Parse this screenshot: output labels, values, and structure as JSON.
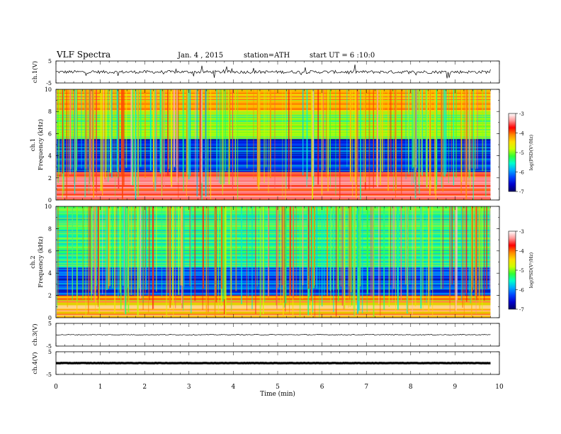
{
  "header": {
    "title": "VLF Spectra",
    "date": "Jan. 4 , 2015",
    "station": "station=ATH",
    "start": "start UT = 6 :10:0"
  },
  "colors": {
    "background": "#ffffff",
    "frame": "#000000",
    "colormap": [
      "#000066",
      "#0000cc",
      "#0044ff",
      "#00aaff",
      "#00ffcc",
      "#33ff33",
      "#ccff00",
      "#ffdd00",
      "#ff8800",
      "#ff0000",
      "#ff9999",
      "#ffffff"
    ]
  },
  "chart_data": [
    {
      "type": "line",
      "panel": "ch1-waveform",
      "ylabel": "ch.1(V)",
      "ylim": [
        -5,
        5
      ],
      "yticks": [
        "5",
        "-5"
      ],
      "xlim": [
        0,
        10
      ],
      "baseline": 0,
      "description_of_trace": "noisy waveform near 0 V with sporadic spikes"
    },
    {
      "type": "heatmap",
      "panel": "ch1-spectrogram",
      "ylabel_outer": "ch.1",
      "ylabel": "Frequency (kHz)",
      "ylim": [
        0,
        10
      ],
      "yticks": [
        "0",
        "2",
        "4",
        "6",
        "8",
        "10"
      ],
      "xlim": [
        0,
        10
      ],
      "data_end_min": 9.8,
      "colorbar": {
        "label": "log(PSD(V²/Hz)",
        "range": [
          -7,
          -3
        ],
        "ticks": [
          "-3",
          "-4",
          "-5",
          "-6",
          "-7"
        ]
      },
      "bands": [
        {
          "f_low": 0,
          "f_high": 2.5,
          "level": -3.6
        },
        {
          "f_low": 2.5,
          "f_high": 5.5,
          "level": -6.4
        },
        {
          "f_low": 5.5,
          "f_high": 8.0,
          "level": -5.0
        },
        {
          "f_low": 8.0,
          "f_high": 10,
          "level": -4.3
        }
      ]
    },
    {
      "type": "heatmap",
      "panel": "ch2-spectrogram",
      "ylabel_outer": "ch.2",
      "ylabel": "Frequency (kHz)",
      "ylim": [
        0,
        10
      ],
      "yticks": [
        "0",
        "2",
        "4",
        "6",
        "8",
        "10"
      ],
      "xlim": [
        0,
        10
      ],
      "data_end_min": 9.8,
      "colorbar": {
        "label": "log(PSD(V²/Hz)",
        "range": [
          -7,
          -3
        ],
        "ticks": [
          "-3",
          "-4",
          "-5",
          "-6",
          "-7"
        ]
      },
      "bands": [
        {
          "f_low": 0,
          "f_high": 2.0,
          "level": -4.2
        },
        {
          "f_low": 2.0,
          "f_high": 4.5,
          "level": -6.3
        },
        {
          "f_low": 4.5,
          "f_high": 10,
          "level": -5.4
        }
      ]
    },
    {
      "type": "line",
      "panel": "ch3-waveform",
      "ylabel": "ch.3(V)",
      "ylim": [
        -5,
        5
      ],
      "yticks": [
        "5",
        "-5"
      ],
      "xlim": [
        0,
        10
      ],
      "baseline": 0,
      "description_of_trace": "small-amplitude noise near 0 V"
    },
    {
      "type": "line",
      "panel": "ch4-waveform",
      "ylabel": "ch.4(V)",
      "ylim": [
        -5,
        5
      ],
      "yticks": [
        "5",
        "-5"
      ],
      "xlim": [
        0,
        10
      ],
      "baseline": 0,
      "description_of_trace": "thick flat trace at 0 V"
    }
  ],
  "x_axis": {
    "label": "Time (min)",
    "ticks": [
      "0",
      "1",
      "2",
      "3",
      "4",
      "5",
      "6",
      "7",
      "8",
      "9",
      "10"
    ],
    "xlim": [
      0,
      10
    ]
  }
}
